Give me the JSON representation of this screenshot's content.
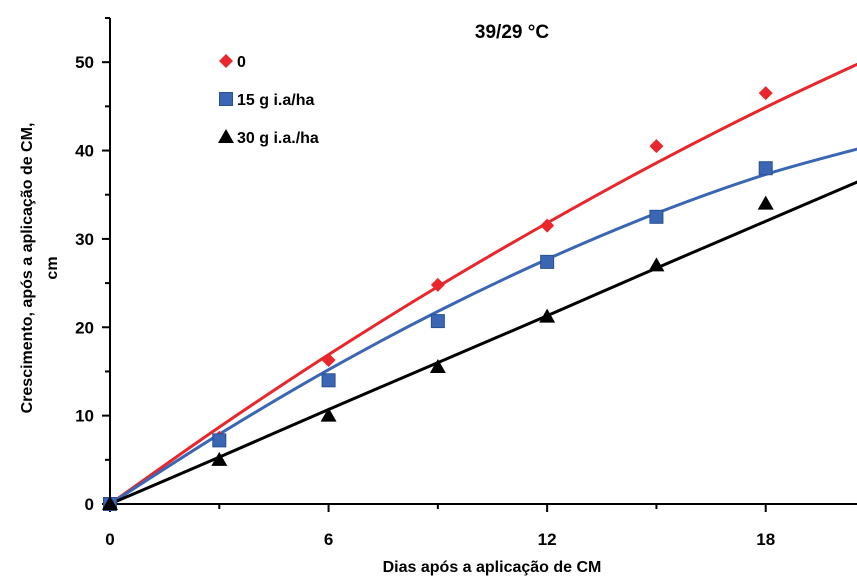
{
  "chart_data": {
    "type": "line",
    "title": "39/29 °C",
    "xlabel": "Dias após a aplicação de CM",
    "ylabel_lines": [
      "Crescimento, após a aplicação de CM,",
      "cm"
    ],
    "xlim": [
      0,
      21
    ],
    "ylim": [
      0,
      55
    ],
    "xticks": [
      0,
      6,
      12,
      18
    ],
    "yticks": [
      0,
      10,
      20,
      30,
      40,
      50
    ],
    "x": [
      0,
      3,
      6,
      9,
      12,
      15,
      18,
      21
    ],
    "legend_position": "top-left",
    "grid": false,
    "series": [
      {
        "name": "0",
        "marker": "diamond",
        "color": "#e8262b",
        "values": [
          0,
          7.5,
          16.3,
          24.8,
          31.5,
          40.5,
          46.5,
          50.0
        ],
        "fit": [
          0,
          8.7,
          16.9,
          24.6,
          31.8,
          38.6,
          44.9,
          50.7
        ]
      },
      {
        "name": "15 g i.a/ha",
        "marker": "square",
        "color": "#3a66b4",
        "values": [
          0,
          7.2,
          14.0,
          20.7,
          27.4,
          32.5,
          38.0,
          40.5
        ],
        "fit": [
          0,
          7.9,
          15.2,
          21.8,
          27.7,
          32.9,
          37.3,
          40.7
        ]
      },
      {
        "name": "30 g i.a./ha",
        "marker": "triangle",
        "color": "#000000",
        "values": [
          0,
          5.0,
          10.0,
          15.5,
          21.2,
          27.0,
          34.0,
          36.5
        ],
        "fit": [
          0,
          5.3,
          10.7,
          16.0,
          21.3,
          26.7,
          32.0,
          37.3
        ]
      }
    ]
  }
}
